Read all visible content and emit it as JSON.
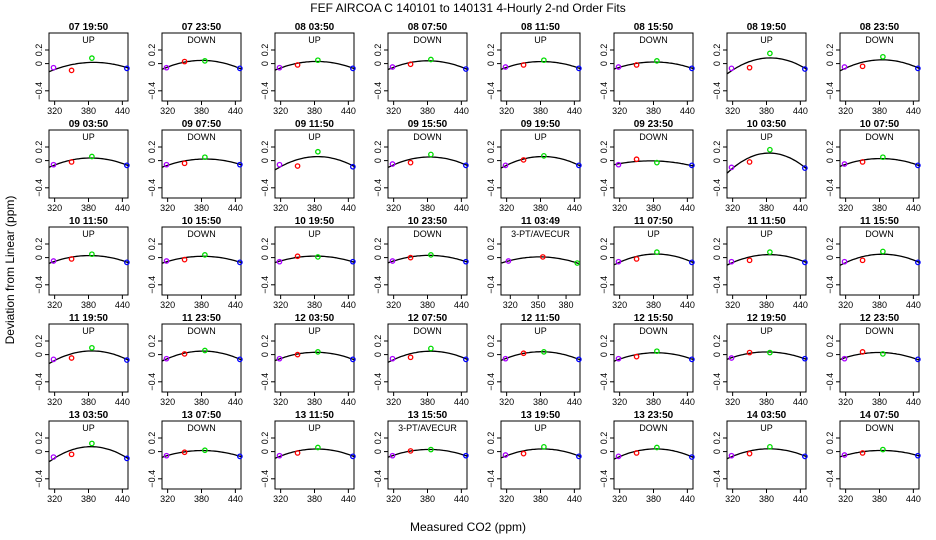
{
  "figure": {
    "title": "FEF   AIRCOA C   140101 to 140131   4-Hourly 2-nd Order Fits",
    "xlabel": "Measured CO2 (ppm)",
    "ylabel": "Deviation from Linear (ppm)"
  },
  "colors": {
    "low": "#ff0000",
    "mid": "#00dd00",
    "high": "#0000ff",
    "ref": "#aa00ff",
    "fit": "#000000"
  },
  "chart_data": {
    "type": "scatter",
    "grid": false,
    "xlim": [
      310,
      450
    ],
    "ylim": [
      -0.55,
      0.45
    ],
    "xticks": [
      320,
      380,
      440
    ],
    "yticks": [
      -0.4,
      0,
      0.2
    ],
    "alt_xlim": [
      310,
      395
    ],
    "alt_xticks": [
      320,
      350,
      380
    ],
    "reference_x": [
      318,
      350,
      386,
      448
    ],
    "panels": [
      {
        "label": "07 19:50",
        "mode": "UP",
        "y": [
          -0.06,
          -0.1,
          0.08,
          -0.07
        ]
      },
      {
        "label": "07 23:50",
        "mode": "DOWN",
        "y": [
          -0.06,
          0.03,
          0.04,
          -0.07
        ]
      },
      {
        "label": "08 03:50",
        "mode": "UP",
        "y": [
          -0.06,
          -0.02,
          0.05,
          -0.07
        ]
      },
      {
        "label": "08 07:50",
        "mode": "DOWN",
        "y": [
          -0.05,
          -0.01,
          0.06,
          -0.08
        ]
      },
      {
        "label": "08 11:50",
        "mode": "UP",
        "y": [
          -0.05,
          -0.02,
          0.05,
          -0.07
        ]
      },
      {
        "label": "08 15:50",
        "mode": "DOWN",
        "y": [
          -0.05,
          -0.02,
          0.04,
          -0.07
        ]
      },
      {
        "label": "08 19:50",
        "mode": "UP",
        "y": [
          -0.07,
          -0.06,
          0.15,
          -0.08
        ]
      },
      {
        "label": "08 23:50",
        "mode": "DOWN",
        "y": [
          -0.05,
          -0.04,
          0.1,
          -0.07
        ]
      },
      {
        "label": "09 03:50",
        "mode": "UP",
        "y": [
          -0.06,
          -0.02,
          0.06,
          -0.07
        ]
      },
      {
        "label": "09 07:50",
        "mode": "DOWN",
        "y": [
          -0.06,
          -0.04,
          0.05,
          -0.06
        ]
      },
      {
        "label": "09 11:50",
        "mode": "UP",
        "y": [
          -0.06,
          -0.08,
          0.13,
          -0.09
        ]
      },
      {
        "label": "09 15:50",
        "mode": "DOWN",
        "y": [
          -0.05,
          -0.03,
          0.09,
          -0.07
        ]
      },
      {
        "label": "09 19:50",
        "mode": "UP",
        "y": [
          -0.07,
          0.01,
          0.07,
          -0.07
        ]
      },
      {
        "label": "09 23:50",
        "mode": "DOWN",
        "y": [
          -0.06,
          0.02,
          -0.03,
          -0.07
        ]
      },
      {
        "label": "10 03:50",
        "mode": "UP",
        "y": [
          -0.1,
          -0.02,
          0.16,
          -0.11
        ]
      },
      {
        "label": "10 07:50",
        "mode": "DOWN",
        "y": [
          -0.05,
          -0.02,
          0.05,
          -0.07
        ]
      },
      {
        "label": "10 11:50",
        "mode": "UP",
        "y": [
          -0.05,
          -0.02,
          0.05,
          -0.07
        ]
      },
      {
        "label": "10 15:50",
        "mode": "DOWN",
        "y": [
          -0.05,
          -0.03,
          0.04,
          -0.07
        ]
      },
      {
        "label": "10 19:50",
        "mode": "UP",
        "y": [
          -0.06,
          0.02,
          0.01,
          -0.06
        ]
      },
      {
        "label": "10 23:50",
        "mode": "DOWN",
        "y": [
          -0.05,
          0,
          0.04,
          -0.06
        ]
      },
      {
        "label": "11 03:49",
        "mode": "3-PT/AVECUR",
        "alt_axis": true,
        "x": [
          318,
          355,
          392
        ],
        "y": [
          -0.05,
          0.01,
          -0.08
        ]
      },
      {
        "label": "11 07:50",
        "mode": "UP",
        "y": [
          -0.06,
          -0.02,
          0.08,
          -0.07
        ]
      },
      {
        "label": "11 11:50",
        "mode": "UP",
        "y": [
          -0.06,
          -0.04,
          0.08,
          -0.07
        ]
      },
      {
        "label": "11 15:50",
        "mode": "DOWN",
        "y": [
          -0.06,
          -0.04,
          0.09,
          -0.07
        ]
      },
      {
        "label": "11 19:50",
        "mode": "UP",
        "y": [
          -0.07,
          -0.05,
          0.1,
          -0.08
        ]
      },
      {
        "label": "11 23:50",
        "mode": "DOWN",
        "y": [
          -0.06,
          0.01,
          0.06,
          -0.07
        ]
      },
      {
        "label": "12 03:50",
        "mode": "UP",
        "y": [
          -0.06,
          0,
          0.04,
          -0.07
        ]
      },
      {
        "label": "12 07:50",
        "mode": "DOWN",
        "y": [
          -0.06,
          -0.04,
          0.09,
          -0.07
        ]
      },
      {
        "label": "12 11:50",
        "mode": "UP",
        "y": [
          -0.06,
          0.02,
          0.04,
          -0.07
        ]
      },
      {
        "label": "12 15:50",
        "mode": "DOWN",
        "y": [
          -0.06,
          -0.03,
          0.05,
          -0.07
        ]
      },
      {
        "label": "12 19:50",
        "mode": "UP",
        "y": [
          -0.05,
          0.03,
          0.03,
          -0.06
        ]
      },
      {
        "label": "12 23:50",
        "mode": "DOWN",
        "y": [
          -0.06,
          0.04,
          0.01,
          -0.07
        ]
      },
      {
        "label": "13 03:50",
        "mode": "UP",
        "y": [
          -0.08,
          -0.04,
          0.12,
          -0.1
        ]
      },
      {
        "label": "13 07:50",
        "mode": "DOWN",
        "y": [
          -0.06,
          -0.01,
          0.02,
          -0.07
        ]
      },
      {
        "label": "13 11:50",
        "mode": "UP",
        "y": [
          -0.06,
          -0.02,
          0.06,
          -0.07
        ]
      },
      {
        "label": "13 15:50",
        "mode": "3-PT/AVECUR",
        "y": [
          -0.06,
          0.01,
          0.03,
          -0.06
        ]
      },
      {
        "label": "13 19:50",
        "mode": "UP",
        "y": [
          -0.05,
          -0.03,
          0.07,
          -0.07
        ]
      },
      {
        "label": "13 23:50",
        "mode": "DOWN",
        "y": [
          -0.07,
          -0.02,
          0.06,
          -0.08
        ]
      },
      {
        "label": "14 03:50",
        "mode": "UP",
        "y": [
          -0.06,
          -0.03,
          0.07,
          -0.07
        ]
      },
      {
        "label": "14 07:50",
        "mode": "DOWN",
        "y": [
          -0.05,
          -0.02,
          0.03,
          -0.06
        ]
      }
    ]
  }
}
